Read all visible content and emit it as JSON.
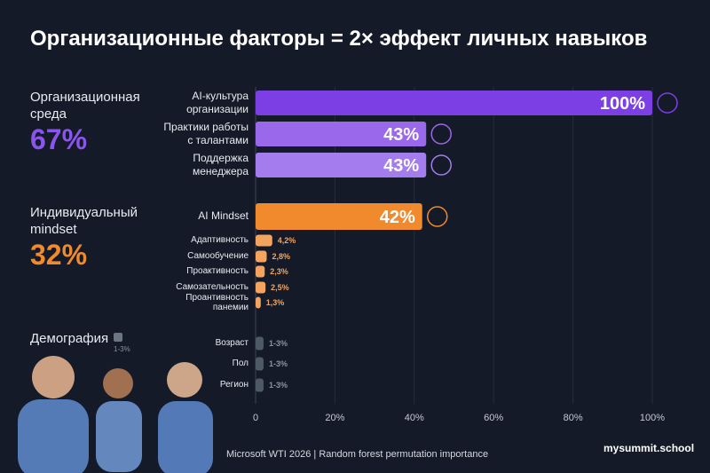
{
  "chart_data": {
    "type": "bar",
    "orientation": "horizontal",
    "title": "Организационные факторы = 2× эффект личных навыков",
    "categories": [
      "AI-культура\nорганизации",
      "Практики работы\nс талантами",
      "Поддержка\nменеджера",
      "AI Mindset",
      "Адаптивность",
      "Самообучение",
      "Проактивность",
      "Самозательность",
      "Проантивность\nпанемии",
      "Возраст",
      "Пол",
      "Регион"
    ],
    "series": [
      {
        "values": [
          100,
          43,
          43,
          42,
          4.2,
          2.8,
          2.3,
          2.5,
          1.3,
          2,
          2,
          2
        ],
        "value_labels": [
          "100%",
          "43%",
          "43%",
          "42%",
          "4,2%",
          "2,8%",
          "2,3%",
          "2,5%",
          "1,3%",
          "1-3%",
          "1-3%",
          "1-3%"
        ],
        "colors": [
          "#7b3fe4",
          "#9a68ea",
          "#a47cee",
          "#f08a2c",
          "#f4a45f",
          "#f4a45f",
          "#f4a45f",
          "#f4a45f",
          "#f4a45f",
          "#4e5a63",
          "#4e5a63",
          "#4e5a63"
        ]
      }
    ],
    "xlim": [
      0,
      100
    ],
    "xticks": [
      0,
      {
        "value": 20,
        "label": "20%"
      },
      {
        "value": 40,
        "label": "40%"
      },
      {
        "value": 60,
        "label": "60%"
      },
      {
        "value": 80,
        "label": "80%"
      },
      {
        "value": 100,
        "label": "100%"
      }
    ],
    "grid": true,
    "groups": [
      {
        "name": "Организационная\nсреда",
        "share": "67%",
        "color": "#8a55ee"
      },
      {
        "name": "Индивидуальный\nmindset",
        "share": "32%",
        "color": "#f08a2c"
      },
      {
        "name": "Демография",
        "share": "1-3%",
        "color": "#6b7680"
      }
    ],
    "source": "Microsoft WTI 2026 | Random forest permutation importance",
    "brand": "mysummit.school"
  }
}
